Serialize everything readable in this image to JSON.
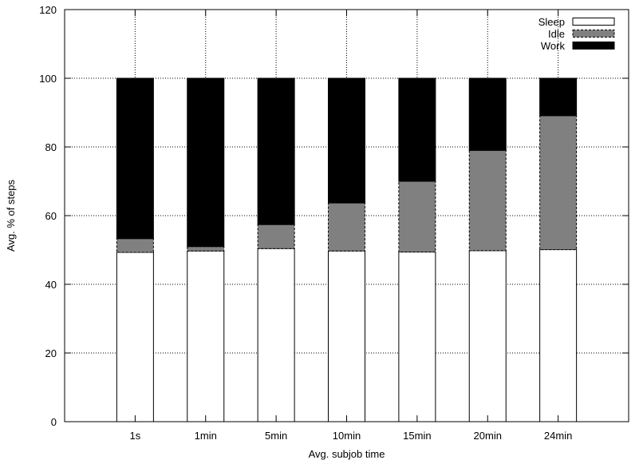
{
  "chart_data": {
    "type": "bar",
    "stacked": true,
    "xlabel": "Avg. subjob time",
    "ylabel": "Avg. % of steps",
    "ylim": [
      0,
      120
    ],
    "yticks": [
      0,
      20,
      40,
      60,
      80,
      100,
      120
    ],
    "grid": true,
    "legend_position": "top-right",
    "categories": [
      "1s",
      "1min",
      "5min",
      "10min",
      "15min",
      "20min",
      "24min"
    ],
    "series": [
      {
        "name": "Sleep",
        "color": "#ffffff",
        "values": [
          49.3,
          49.7,
          50.4,
          49.7,
          49.4,
          49.8,
          50.1
        ]
      },
      {
        "name": "Idle",
        "color": "#808080",
        "values": [
          4.0,
          1.3,
          7.0,
          14.0,
          20.6,
          29.2,
          39.0
        ]
      },
      {
        "name": "Work",
        "color": "#000000",
        "values": [
          46.7,
          49.0,
          42.6,
          36.3,
          30.0,
          21.0,
          10.9
        ]
      }
    ]
  }
}
